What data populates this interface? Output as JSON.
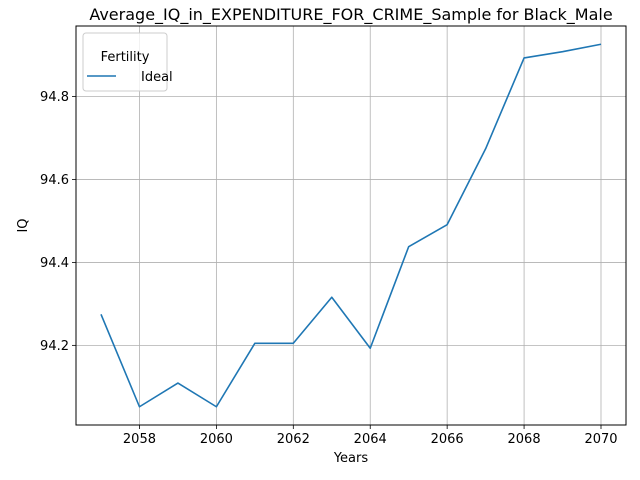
{
  "chart_data": {
    "type": "line",
    "title": "Average_IQ_in_EXPENDITURE_FOR_CRIME_Sample for Black_Male",
    "xlabel": "Years",
    "ylabel": "IQ",
    "x": [
      2057,
      2058,
      2059,
      2060,
      2061,
      2062,
      2063,
      2064,
      2065,
      2066,
      2067,
      2068,
      2069,
      2070
    ],
    "series": [
      {
        "name": "Ideal",
        "color": "#1f77b4",
        "values": [
          94.275,
          94.052,
          94.109,
          94.052,
          94.205,
          94.205,
          94.316,
          94.193,
          94.438,
          94.491,
          94.674,
          94.893,
          94.908,
          94.926
        ]
      }
    ],
    "xlim": [
      2056.35,
      2070.65
    ],
    "ylim": [
      94.008,
      94.97
    ],
    "xticks": [
      2058,
      2060,
      2062,
      2064,
      2066,
      2068,
      2070
    ],
    "yticks": [
      94.2,
      94.4,
      94.6,
      94.8
    ],
    "ytick_labels": [
      "94.2",
      "94.4",
      "94.6",
      "94.8"
    ],
    "grid": true,
    "legend": {
      "title": "Fertility",
      "position": "upper-left"
    }
  }
}
